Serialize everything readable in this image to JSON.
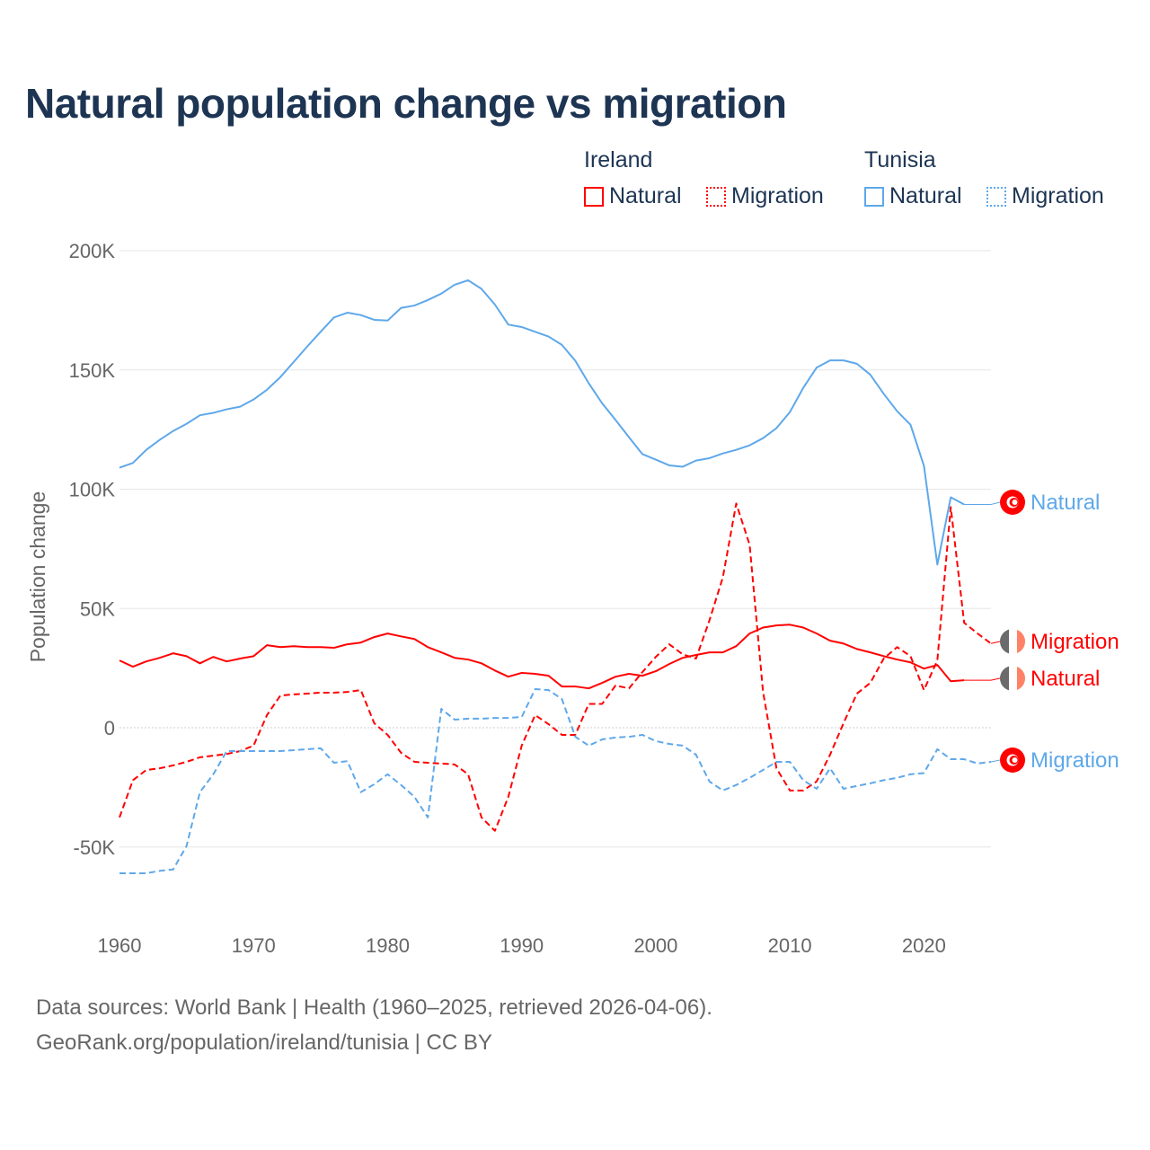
{
  "chart_data": {
    "type": "line",
    "title": "Natural population change vs migration",
    "xlabel": "",
    "ylabel": "Population change",
    "xlim": [
      1960,
      2025
    ],
    "ylim": [
      -60,
      200
    ],
    "y_unit": "thousands",
    "grid": true,
    "legend_placement": "top-right",
    "x_ticks": [
      1960,
      1970,
      1980,
      1990,
      2000,
      2010,
      2020
    ],
    "x_tick_labels": [
      "1960",
      "1970",
      "1980",
      "1990",
      "2000",
      "2010",
      "2020"
    ],
    "y_ticks": [
      -50,
      0,
      50,
      100,
      150,
      200
    ],
    "y_tick_labels": [
      "-50K",
      "0",
      "50K",
      "100K",
      "150K",
      "200K"
    ],
    "legend": {
      "groups": [
        {
          "name": "Ireland",
          "items": [
            {
              "label": "Natural",
              "style": "solid",
              "color": "#ff0000"
            },
            {
              "label": "Migration",
              "style": "dotted",
              "color": "#ff0000"
            }
          ]
        },
        {
          "name": "Tunisia",
          "items": [
            {
              "label": "Natural",
              "style": "solid",
              "color": "#5ea8ea"
            },
            {
              "label": "Migration",
              "style": "dotted",
              "color": "#5ea8ea"
            }
          ]
        }
      ]
    },
    "series": [
      {
        "name": "Tunisia Natural",
        "country": "Tunisia",
        "kind": "Natural",
        "end_label": "Natural",
        "color": "#5ea8ea",
        "dashed": false,
        "x_start": 1960,
        "values": [
          109,
          111,
          116.5,
          120.7,
          124.4,
          127.4,
          131,
          132,
          133.5,
          134.6,
          137.6,
          141.7,
          147,
          153.4,
          159.8,
          166,
          172,
          174,
          173,
          171,
          170.7,
          176,
          177,
          179.3,
          182,
          185.7,
          187.6,
          184,
          177.4,
          169,
          168,
          166,
          164,
          160.5,
          153.8,
          144.4,
          136,
          129,
          121.8,
          114.7,
          112.4,
          110,
          109.4,
          112,
          113,
          115,
          116.5,
          118.4,
          121.4,
          125.6,
          132.3,
          142.5,
          151,
          154,
          154,
          152.6,
          148,
          140,
          132.7,
          127,
          109.8,
          68.4,
          96.6,
          93.6
        ]
      },
      {
        "name": "Ireland Natural",
        "country": "Ireland",
        "kind": "Natural",
        "end_label": "Natural",
        "color": "#ff0000",
        "dashed": false,
        "x_start": 1960,
        "values": [
          28.2,
          25.6,
          27.8,
          29.3,
          31.2,
          30,
          27,
          29.7,
          27.8,
          29,
          30,
          34.6,
          33.8,
          34.2,
          33.8,
          33.8,
          33.5,
          35,
          35.7,
          38,
          39.5,
          38.3,
          37.2,
          33.8,
          31.6,
          29.3,
          28.6,
          27,
          24,
          21.4,
          23,
          22.6,
          21.8,
          17.3,
          17.3,
          16.5,
          18.8,
          21.4,
          22.6,
          21.8,
          23.7,
          26.7,
          29.3,
          30.5,
          31.6,
          31.6,
          34.2,
          39.5,
          42,
          42.9,
          43.2,
          42,
          39.5,
          36.5,
          35.3,
          33,
          31.6,
          30,
          28.6,
          27.4,
          24.8,
          26.3,
          19.5,
          19.9
        ]
      },
      {
        "name": "Ireland Migration",
        "country": "Ireland",
        "kind": "Migration",
        "end_label": "Migration",
        "color": "#ff0000",
        "dashed": true,
        "x_start": 1960,
        "values": [
          -37.6,
          -22,
          -17.7,
          -17,
          -15.8,
          -14.3,
          -12.4,
          -11.7,
          -11,
          -9.8,
          -7.5,
          5.3,
          13.5,
          14,
          14.3,
          14.7,
          14.7,
          15,
          15.8,
          1.9,
          -3,
          -10.5,
          -14.3,
          -14.7,
          -15,
          -15.4,
          -19.5,
          -37.6,
          -43.2,
          -29,
          -7.5,
          5.3,
          1.5,
          -3,
          -3,
          10,
          10,
          17.7,
          16.5,
          23.3,
          29.7,
          35,
          30.8,
          29,
          45,
          63,
          94,
          76.7,
          15,
          -17,
          -26.3,
          -26.3,
          -22.5,
          -11.3,
          1.9,
          14.3,
          18.8,
          29,
          33.8,
          30,
          15.8,
          28.2,
          92.5,
          44,
          39.5,
          35.3
        ]
      },
      {
        "name": "Tunisia Migration",
        "country": "Tunisia",
        "kind": "Migration",
        "end_label": "Migration",
        "color": "#5ea8ea",
        "dashed": true,
        "x_start": 1960,
        "values": [
          -61,
          -61,
          -61,
          -60,
          -59.4,
          -49.6,
          -27,
          -19.5,
          -9.8,
          -9.8,
          -9.8,
          -9.8,
          -9.8,
          -9.4,
          -9,
          -8.6,
          -14.7,
          -14,
          -27,
          -23.7,
          -19.5,
          -24,
          -29,
          -37.6,
          7.9,
          3.4,
          3.8,
          3.8,
          4.1,
          4.1,
          4.5,
          16.2,
          15.8,
          12,
          -3.8,
          -7.5,
          -4.9,
          -4.1,
          -3.8,
          -3,
          -5.6,
          -6.8,
          -7.5,
          -11.3,
          -22.5,
          -26.3,
          -24,
          -21,
          -17.7,
          -14.3,
          -14.3,
          -22,
          -25.6,
          -17,
          -25.6,
          -24.4,
          -23.3,
          -22,
          -21,
          -19.5,
          -19,
          -9,
          -13.2,
          -13.2,
          -15,
          -14.3
        ]
      }
    ]
  },
  "footer": {
    "line1": "Data sources: World Bank | Health (1960–2025, retrieved 2026-04-06).",
    "line2": "GeoRank.org/population/ireland/tunisia | CC BY"
  }
}
